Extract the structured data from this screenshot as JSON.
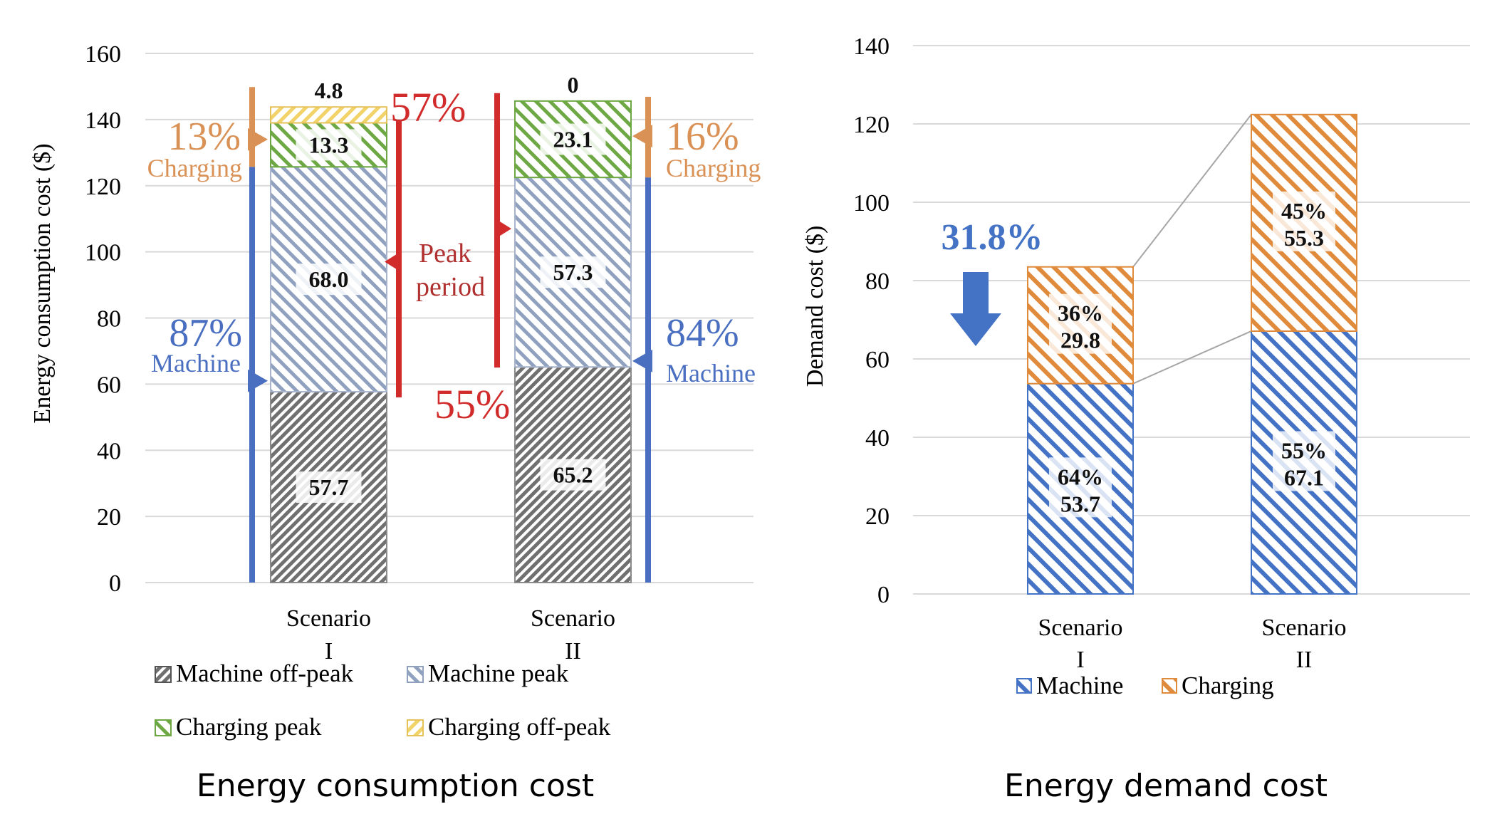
{
  "captions": {
    "left": "Energy consumption cost",
    "right": "Energy demand cost"
  },
  "colors": {
    "machine_offpeak": "#707070",
    "machine_peak": "#8fa1bf",
    "charging_peak": "#6ea845",
    "charging_offpeak": "#f1d36a",
    "machine": "#4472c4",
    "charging": "#e08a3c",
    "machine_annot": "#4a6fc0",
    "charging_annot": "#d99155",
    "peak_annot": "#d12b2b",
    "peak_text": "#b03030",
    "arrow": "#4472c4"
  },
  "chart_data": [
    {
      "type": "bar",
      "stacked": true,
      "ylabel": "Energy consumption cost ($)",
      "ylim": [
        0,
        160
      ],
      "yticks": [
        0,
        20,
        40,
        60,
        80,
        100,
        120,
        140,
        160
      ],
      "grid": true,
      "legend_position": "bottom",
      "categories": [
        {
          "line1": "Scenario",
          "line2": "I"
        },
        {
          "line1": "Scenario",
          "line2": "II"
        }
      ],
      "series": [
        {
          "name": "Machine off-peak",
          "values": [
            57.7,
            65.2
          ],
          "labels": [
            "57.7",
            "65.2"
          ]
        },
        {
          "name": "Machine peak",
          "values": [
            68.0,
            57.3
          ],
          "labels": [
            "68.0",
            "57.3"
          ]
        },
        {
          "name": "Charging peak",
          "values": [
            13.3,
            23.1
          ],
          "labels": [
            "13.3",
            "23.1"
          ]
        },
        {
          "name": "Charging off-peak",
          "values": [
            4.8,
            0
          ],
          "labels": [
            "4.8",
            "0"
          ]
        }
      ],
      "annotations": {
        "s1_charging_pct": "13%",
        "s1_charging_word": "Charging",
        "s1_machine_pct": "87%",
        "s1_machine_word": "Machine",
        "s2_charging_pct": "16%",
        "s2_charging_word": "Charging",
        "s2_machine_pct": "84%",
        "s2_machine_word": "Machine",
        "peak_pct_1": "57%",
        "peak_pct_2": "55%",
        "peak_line1": "Peak",
        "peak_line2": "period"
      }
    },
    {
      "type": "bar",
      "stacked": true,
      "ylabel": "Demand cost ($)",
      "ylim": [
        0,
        140
      ],
      "yticks": [
        0,
        20,
        40,
        60,
        80,
        100,
        120,
        140
      ],
      "grid": true,
      "legend_position": "bottom",
      "categories": [
        {
          "line1": "Scenario",
          "line2": "I"
        },
        {
          "line1": "Scenario",
          "line2": "II"
        }
      ],
      "series": [
        {
          "name": "Machine",
          "values": [
            53.7,
            67.1
          ],
          "pct": [
            "64%",
            "55%"
          ],
          "labels": [
            "53.7",
            "67.1"
          ]
        },
        {
          "name": "Charging",
          "values": [
            29.8,
            55.3
          ],
          "pct": [
            "36%",
            "45%"
          ],
          "labels": [
            "29.8",
            "55.3"
          ]
        }
      ],
      "annotations": {
        "reduction": "31.8%"
      }
    }
  ]
}
